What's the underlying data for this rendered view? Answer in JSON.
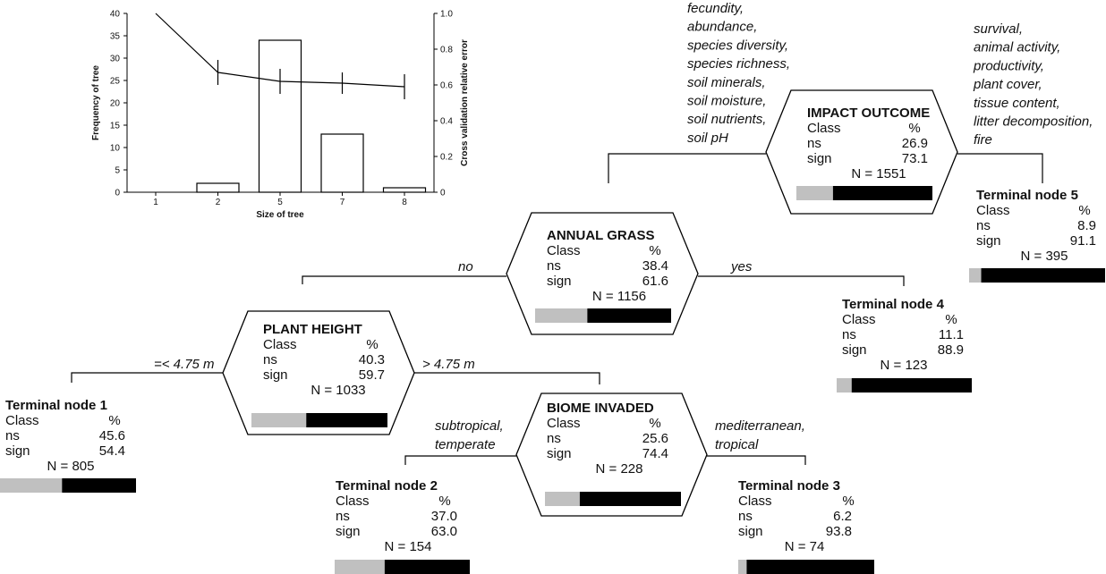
{
  "chart_data": {
    "type": "bar",
    "categories": [
      "1",
      "2",
      "5",
      "7",
      "8"
    ],
    "series": [
      {
        "name": "",
        "axis": "left",
        "type": "bar",
        "values": [
          0,
          2,
          34,
          13,
          1
        ]
      },
      {
        "name": "",
        "axis": "right",
        "type": "line",
        "values": [
          1.0,
          0.67,
          0.62,
          0.61,
          0.59
        ],
        "error": [
          0,
          0.07,
          0.07,
          0.06,
          0.07
        ]
      }
    ],
    "xlabel": "Size of tree",
    "ylabel": "Frequency of tree",
    "y2label": "Cross validation relative error",
    "ylim": [
      0,
      40
    ],
    "y2lim": [
      0,
      1.0
    ],
    "yticks": [
      "0",
      "5",
      "10",
      "15",
      "20",
      "25",
      "30",
      "35",
      "40"
    ],
    "y2ticks": [
      "0",
      "0.2",
      "0.4",
      "0.6",
      "0.8",
      "1.0"
    ]
  },
  "tree": {
    "nodes": [
      {
        "id": "impact",
        "title": "IMPACT OUTCOME",
        "class_label": "Class",
        "pct_label": "%",
        "ns_label": "ns",
        "sign_label": "sign",
        "ns": "26.9",
        "sign": "73.1",
        "n": "N = 1551",
        "ns_frac": 0.269
      },
      {
        "id": "annual",
        "title": "ANNUAL GRASS",
        "class_label": "Class",
        "pct_label": "%",
        "ns_label": "ns",
        "sign_label": "sign",
        "ns": "38.4",
        "sign": "61.6",
        "n": "N = 1156",
        "ns_frac": 0.384
      },
      {
        "id": "height",
        "title": "PLANT HEIGHT",
        "class_label": "Class",
        "pct_label": "%",
        "ns_label": "ns",
        "sign_label": "sign",
        "ns": "40.3",
        "sign": "59.7",
        "n": "N = 1033",
        "ns_frac": 0.403
      },
      {
        "id": "biome",
        "title": "BIOME INVADED",
        "class_label": "Class",
        "pct_label": "%",
        "ns_label": "ns",
        "sign_label": "sign",
        "ns": "25.6",
        "sign": "74.4",
        "n": "N = 228",
        "ns_frac": 0.256
      }
    ],
    "terminals": [
      {
        "id": "t1",
        "title": "Terminal node 1",
        "class_label": "Class",
        "pct_label": "%",
        "ns_label": "ns",
        "sign_label": "sign",
        "ns": "45.6",
        "sign": "54.4",
        "n": "N = 805",
        "ns_frac": 0.456
      },
      {
        "id": "t2",
        "title": "Terminal node 2",
        "class_label": "Class",
        "pct_label": "%",
        "ns_label": "ns",
        "sign_label": "sign",
        "ns": "37.0",
        "sign": "63.0",
        "n": "N = 154",
        "ns_frac": 0.37
      },
      {
        "id": "t3",
        "title": "Terminal node 3",
        "class_label": "Class",
        "pct_label": "%",
        "ns_label": "ns",
        "sign_label": "sign",
        "ns": "6.2",
        "sign": "93.8",
        "n": "N = 74",
        "ns_frac": 0.062
      },
      {
        "id": "t4",
        "title": "Terminal node 4",
        "class_label": "Class",
        "pct_label": "%",
        "ns_label": "ns",
        "sign_label": "sign",
        "ns": "11.1",
        "sign": "88.9",
        "n": "N = 123",
        "ns_frac": 0.111
      },
      {
        "id": "t5",
        "title": "Terminal node 5",
        "class_label": "Class",
        "pct_label": "%",
        "ns_label": "ns",
        "sign_label": "sign",
        "ns": "8.9",
        "sign": "91.1",
        "n": "N = 395",
        "ns_frac": 0.089
      }
    ],
    "split_labels": {
      "impact_left": [
        "fecundity,",
        "abundance,",
        "species diversity,",
        "species richness,",
        "soil minerals,",
        "soil moisture,",
        "soil nutrients,",
        "soil pH"
      ],
      "impact_right": [
        "survival,",
        "animal activity,",
        "productivity,",
        "plant cover,",
        "tissue content,",
        "litter decomposition,",
        "fire"
      ],
      "annual_left": "no",
      "annual_right": "yes",
      "height_left": "=< 4.75 m",
      "height_right": "> 4.75 m",
      "biome_left": [
        "subtropical,",
        "temperate"
      ],
      "biome_right": [
        "mediterranean,",
        "tropical"
      ]
    },
    "colors": {
      "ns": "#c0c0c0",
      "sign": "#000000",
      "line": "#000000"
    }
  }
}
